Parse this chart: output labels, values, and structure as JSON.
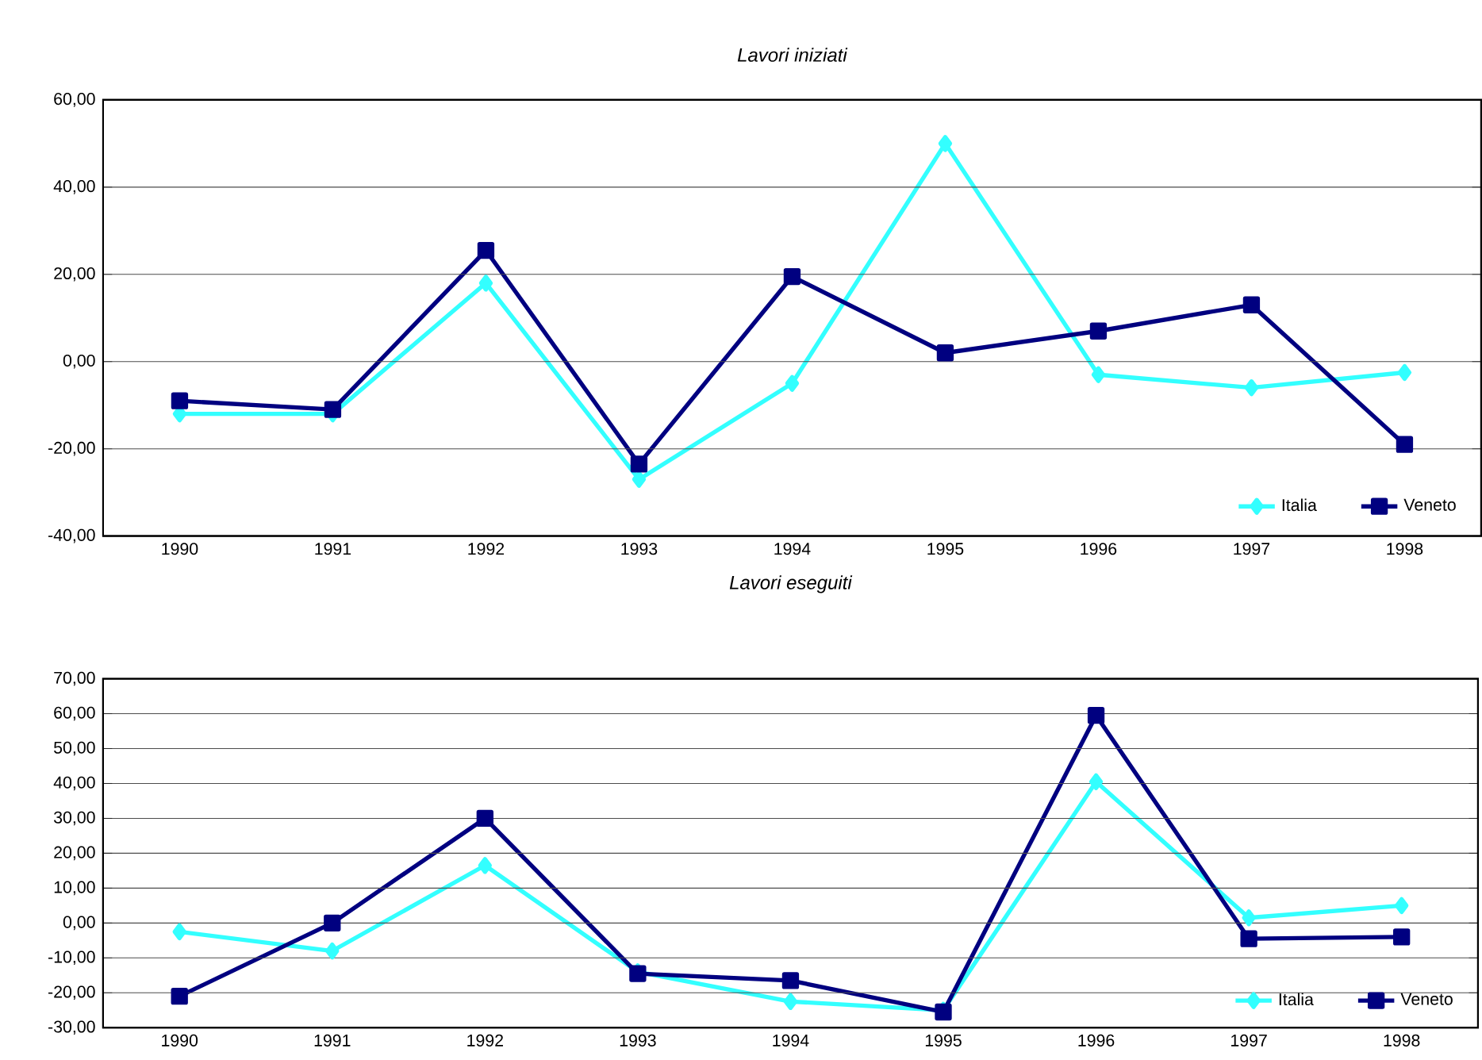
{
  "chart_data": [
    {
      "type": "line",
      "title": "Lavori iniziati",
      "categories": [
        "1990",
        "1991",
        "1992",
        "1993",
        "1994",
        "1995",
        "1996",
        "1997",
        "1998"
      ],
      "series": [
        {
          "name": "Italia",
          "color": "#33ffff",
          "marker": "diamond",
          "values": [
            -12,
            -12,
            18,
            -27,
            -5,
            50,
            -3,
            -6,
            -2.5
          ]
        },
        {
          "name": "Veneto",
          "color": "#000080",
          "marker": "square",
          "values": [
            -9,
            -11,
            25.5,
            -23.5,
            19.5,
            2,
            7,
            13,
            -19
          ]
        }
      ],
      "ylim": [
        -40,
        60
      ],
      "yticks": [
        {
          "value": -40,
          "label": "-40,00"
        },
        {
          "value": -20,
          "label": "-20,00"
        },
        {
          "value": 0,
          "label": "0,00"
        },
        {
          "value": 20,
          "label": "20,00"
        },
        {
          "value": 40,
          "label": "40,00"
        },
        {
          "value": 60,
          "label": "60,00"
        }
      ],
      "grid": "y",
      "legend": "bottom right"
    },
    {
      "type": "line",
      "title": "Lavori eseguiti",
      "categories": [
        "1990",
        "1991",
        "1992",
        "1993",
        "1994",
        "1995",
        "1996",
        "1997",
        "1998"
      ],
      "series": [
        {
          "name": "Italia",
          "color": "#33ffff",
          "marker": "diamond",
          "values": [
            -2.5,
            -8,
            16.5,
            -14,
            -22.5,
            -25,
            40.5,
            1.5,
            5
          ]
        },
        {
          "name": "Veneto",
          "color": "#000080",
          "marker": "square",
          "values": [
            -21,
            0,
            30,
            -14.5,
            -16.5,
            -25.5,
            59.5,
            -4.5,
            -4
          ]
        }
      ],
      "ylim": [
        -30,
        70
      ],
      "yticks": [
        {
          "value": -30,
          "label": "-30,00"
        },
        {
          "value": -20,
          "label": "-20,00"
        },
        {
          "value": -10,
          "label": "-10,00"
        },
        {
          "value": 0,
          "label": "0,00"
        },
        {
          "value": 10,
          "label": "10,00"
        },
        {
          "value": 20,
          "label": "20,00"
        },
        {
          "value": 30,
          "label": "30,00"
        },
        {
          "value": 40,
          "label": "40,00"
        },
        {
          "value": 50,
          "label": "50,00"
        },
        {
          "value": 60,
          "label": "60,00"
        },
        {
          "value": 70,
          "label": "70,00"
        }
      ],
      "grid": "y",
      "legend": "bottom right"
    }
  ]
}
